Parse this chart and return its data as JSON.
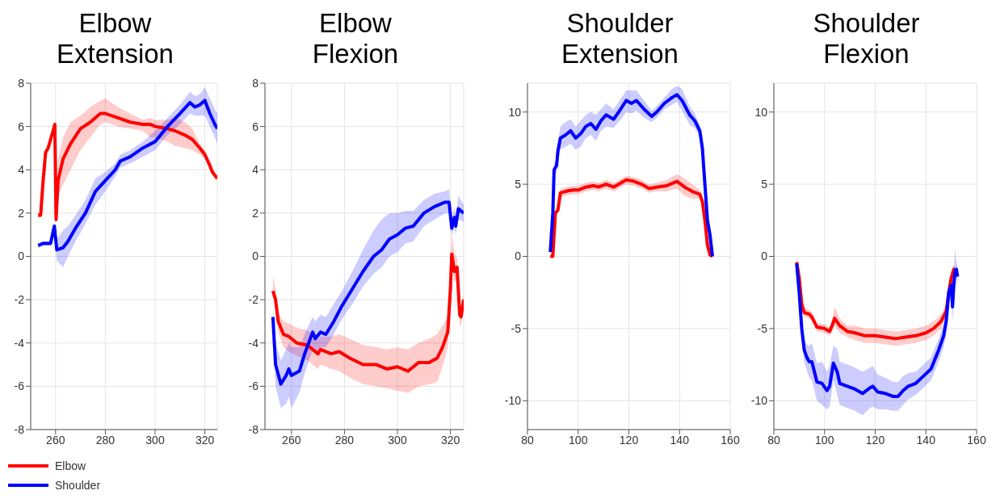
{
  "chart_data": [
    {
      "type": "line",
      "title": "Elbow Extension",
      "xlim": [
        250,
        325
      ],
      "xticks": [
        260,
        280,
        300,
        320
      ],
      "ylim": [
        -8,
        8
      ],
      "yticks": [
        -8,
        -6,
        -4,
        -2,
        0,
        2,
        4,
        6,
        8
      ],
      "grid": true,
      "legend": "bottom left",
      "series": [
        {
          "name": "Elbow",
          "color": "#ff0000",
          "x": [
            253,
            254,
            255,
            256,
            257,
            259,
            259.7,
            260.2,
            261,
            263,
            266,
            270,
            274,
            278,
            280,
            285,
            290,
            295,
            298,
            300,
            305,
            308,
            312,
            315,
            318,
            320,
            322,
            323,
            325
          ],
          "values": [
            1.9,
            1.9,
            3.5,
            4.8,
            5.0,
            5.8,
            6.1,
            1.7,
            3.5,
            4.5,
            5.2,
            5.9,
            6.2,
            6.6,
            6.6,
            6.4,
            6.2,
            6.1,
            6.1,
            6.0,
            5.9,
            5.8,
            5.6,
            5.4,
            5.0,
            4.7,
            4.2,
            3.9,
            3.6
          ],
          "lower": [
            1.8,
            1.8,
            3.4,
            4.7,
            4.9,
            5.7,
            6.0,
            1.6,
            2.8,
            3.3,
            4.0,
            4.9,
            5.5,
            6.1,
            6.2,
            6.0,
            5.9,
            5.8,
            5.5,
            5.5,
            5.3,
            5.1,
            5.0,
            4.9,
            4.7,
            4.5,
            4.0,
            3.8,
            3.5
          ],
          "upper": [
            2.0,
            2.0,
            3.6,
            4.9,
            5.1,
            5.9,
            6.2,
            1.8,
            4.5,
            5.5,
            6.2,
            6.5,
            6.9,
            7.2,
            7.3,
            6.9,
            6.6,
            6.3,
            6.4,
            6.3,
            6.3,
            6.4,
            6.2,
            5.9,
            5.2,
            4.9,
            4.4,
            4.0,
            3.7
          ]
        },
        {
          "name": "Shoulder",
          "color": "#0000ff",
          "x": [
            253,
            255,
            258,
            259.5,
            260.5,
            263,
            265,
            268,
            272,
            276,
            280,
            284,
            286,
            290,
            295,
            300,
            305,
            310,
            314,
            316,
            318,
            320,
            322,
            324,
            325
          ],
          "values": [
            0.5,
            0.6,
            0.6,
            1.4,
            0.3,
            0.4,
            0.7,
            1.3,
            2.0,
            3.0,
            3.5,
            4.0,
            4.4,
            4.6,
            5.0,
            5.3,
            6.0,
            6.6,
            7.1,
            6.9,
            7.0,
            7.2,
            6.6,
            6.1,
            5.9
          ],
          "lower": [
            0.4,
            0.5,
            0.5,
            1.3,
            -0.2,
            -0.5,
            0.0,
            0.7,
            1.5,
            2.4,
            3.0,
            3.7,
            4.1,
            4.3,
            4.6,
            4.9,
            5.6,
            6.1,
            6.6,
            6.5,
            6.5,
            6.5,
            6.0,
            5.5,
            5.2
          ],
          "upper": [
            0.6,
            0.7,
            0.7,
            1.5,
            0.8,
            1.2,
            1.4,
            1.9,
            2.6,
            3.6,
            3.9,
            4.3,
            4.7,
            4.9,
            5.3,
            5.8,
            6.4,
            7.0,
            7.6,
            7.4,
            7.5,
            7.8,
            7.3,
            6.8,
            6.6
          ]
        }
      ]
    },
    {
      "type": "line",
      "title": "Elbow Flexion",
      "xlim": [
        250,
        325
      ],
      "xticks": [
        260,
        280,
        300,
        320
      ],
      "ylim": [
        -8,
        8
      ],
      "yticks": [
        -8,
        -6,
        -4,
        -2,
        0,
        2,
        4,
        6,
        8
      ],
      "grid": true,
      "series": [
        {
          "color": "#ff0000",
          "x": [
            253,
            254,
            255,
            257,
            259,
            262,
            266,
            270,
            271,
            275,
            278,
            282,
            287,
            292,
            296,
            300,
            304,
            308,
            312,
            315,
            317,
            319,
            320,
            320.5,
            321.5,
            322.5,
            323.5,
            324,
            325
          ],
          "values": [
            -1.6,
            -2.0,
            -3.0,
            -3.6,
            -3.7,
            -4.0,
            -4.1,
            -4.5,
            -4.3,
            -4.5,
            -4.4,
            -4.7,
            -5.0,
            -5.0,
            -5.2,
            -5.1,
            -5.3,
            -4.9,
            -4.9,
            -4.7,
            -4.2,
            -3.5,
            -1.5,
            0.1,
            -0.7,
            -0.5,
            -2.7,
            -2.8,
            -2.0
          ],
          "lower": [
            -1.8,
            -2.4,
            -3.5,
            -4.2,
            -4.4,
            -4.6,
            -4.8,
            -5.2,
            -5.0,
            -5.2,
            -5.3,
            -5.6,
            -5.9,
            -6.0,
            -6.1,
            -6.2,
            -6.3,
            -6.0,
            -5.9,
            -5.8,
            -5.1,
            -4.2,
            -2.0,
            -0.2,
            -1.2,
            -1.0,
            -3.2,
            -3.2,
            -2.2
          ],
          "upper": [
            -0.9,
            -1.5,
            -2.6,
            -3.0,
            -3.1,
            -3.3,
            -3.4,
            -3.9,
            -3.7,
            -3.7,
            -3.6,
            -3.8,
            -4.1,
            -4.2,
            -4.3,
            -4.2,
            -4.3,
            -4.0,
            -3.8,
            -3.6,
            -3.2,
            -2.8,
            -0.5,
            1.1,
            0.2,
            -0.1,
            -2.2,
            -2.4,
            -1.8
          ]
        },
        {
          "color": "#0000ff",
          "x": [
            253,
            254,
            256,
            258,
            259,
            260,
            263,
            265,
            268,
            269,
            271,
            273,
            276,
            279,
            283,
            287,
            291,
            294,
            297,
            300,
            303,
            306,
            310,
            314,
            318,
            319.5,
            320.5,
            321.5,
            322,
            323,
            325
          ],
          "values": [
            -2.8,
            -5.0,
            -5.9,
            -5.5,
            -5.2,
            -5.5,
            -5.3,
            -4.5,
            -3.5,
            -3.8,
            -3.5,
            -3.6,
            -3.0,
            -2.3,
            -1.5,
            -0.7,
            0.0,
            0.3,
            0.8,
            1.0,
            1.3,
            1.4,
            2.0,
            2.3,
            2.5,
            2.5,
            1.3,
            1.8,
            1.4,
            2.2,
            2.0
          ],
          "lower": [
            -3.2,
            -6.0,
            -7.0,
            -6.8,
            -6.5,
            -7.0,
            -6.3,
            -5.4,
            -4.3,
            -4.5,
            -4.2,
            -4.2,
            -3.6,
            -2.9,
            -2.2,
            -1.4,
            -0.8,
            -0.5,
            0.0,
            0.2,
            0.6,
            0.7,
            1.4,
            1.7,
            2.0,
            2.0,
            1.0,
            1.3,
            1.0,
            1.7,
            1.6
          ],
          "upper": [
            -2.4,
            -4.0,
            -4.8,
            -4.3,
            -4.0,
            -4.2,
            -4.2,
            -3.6,
            -2.8,
            -3.0,
            -2.7,
            -2.8,
            -2.2,
            -1.6,
            -0.7,
            0.3,
            1.2,
            1.7,
            2.0,
            2.0,
            2.1,
            2.1,
            2.6,
            2.9,
            3.0,
            3.1,
            1.6,
            2.3,
            1.9,
            2.8,
            2.4
          ]
        }
      ]
    },
    {
      "type": "line",
      "title": "Shoulder Extension",
      "xlim": [
        80,
        160
      ],
      "xticks": [
        80,
        100,
        120,
        140,
        160
      ],
      "ylim": [
        -12,
        12
      ],
      "yticks": [
        -10,
        -5,
        0,
        5,
        10
      ],
      "grid": true,
      "series": [
        {
          "color": "#ff0000",
          "x": [
            89,
            90,
            91,
            92,
            93,
            95,
            98,
            100,
            103,
            106,
            108,
            111,
            114,
            117,
            119,
            122,
            125,
            128,
            131,
            135,
            139,
            142,
            145,
            148,
            149,
            150,
            151,
            152,
            153
          ],
          "values": [
            0,
            0,
            3.0,
            3.2,
            4.4,
            4.5,
            4.6,
            4.6,
            4.8,
            4.9,
            4.8,
            5.0,
            4.8,
            5.1,
            5.3,
            5.2,
            5.0,
            4.7,
            4.8,
            4.9,
            5.2,
            4.8,
            4.5,
            4.3,
            3.8,
            2.5,
            0.8,
            0.1,
            0
          ],
          "lower": [
            -0.1,
            -0.1,
            2.8,
            3.0,
            4.1,
            4.2,
            4.3,
            4.3,
            4.5,
            4.6,
            4.5,
            4.7,
            4.5,
            4.8,
            5.0,
            4.9,
            4.7,
            4.4,
            4.5,
            4.5,
            4.7,
            4.2,
            4.0,
            4.0,
            3.5,
            2.2,
            0.6,
            0,
            -0.1
          ],
          "upper": [
            0.1,
            0.1,
            3.2,
            3.4,
            4.7,
            4.8,
            4.9,
            4.9,
            5.1,
            5.2,
            5.1,
            5.3,
            5.1,
            5.4,
            5.6,
            5.5,
            5.3,
            5.0,
            5.1,
            5.3,
            5.7,
            5.4,
            5.0,
            4.6,
            4.1,
            2.8,
            1.0,
            0.2,
            0.1
          ]
        },
        {
          "color": "#0000ff",
          "x": [
            89,
            90,
            90.5,
            91.5,
            92,
            93,
            95,
            97,
            99,
            101,
            103,
            105,
            107,
            109,
            111,
            114,
            116,
            119,
            121,
            123,
            126,
            129,
            131,
            134,
            137,
            139,
            141,
            144,
            146,
            148,
            149,
            150,
            151,
            152,
            153
          ],
          "values": [
            0.3,
            3.0,
            6.0,
            6.3,
            7.3,
            8.2,
            8.4,
            8.7,
            8.2,
            8.5,
            9.0,
            9.2,
            8.8,
            9.4,
            9.8,
            9.5,
            10.0,
            10.8,
            10.6,
            10.8,
            10.2,
            9.7,
            10.0,
            10.6,
            11.0,
            11.2,
            10.8,
            9.8,
            9.4,
            8.7,
            7.5,
            5.0,
            2.5,
            1.5,
            0
          ],
          "lower": [
            0.1,
            2.7,
            5.6,
            5.8,
            6.7,
            7.4,
            7.6,
            7.8,
            7.4,
            7.6,
            8.2,
            8.4,
            8.0,
            8.7,
            9.0,
            8.9,
            9.3,
            10.0,
            9.9,
            10.1,
            9.6,
            9.3,
            9.6,
            10.2,
            10.5,
            10.7,
            10.1,
            9.1,
            8.9,
            8.3,
            7.1,
            4.7,
            2.2,
            1.2,
            -0.1
          ],
          "upper": [
            0.5,
            3.3,
            6.4,
            6.8,
            7.9,
            9.0,
            9.3,
            9.5,
            9.0,
            9.4,
            9.8,
            10.0,
            9.8,
            10.2,
            10.6,
            10.2,
            10.7,
            11.5,
            11.5,
            11.5,
            10.8,
            10.1,
            10.4,
            11.0,
            11.6,
            11.8,
            11.6,
            10.4,
            9.9,
            9.1,
            7.9,
            5.3,
            2.8,
            1.8,
            0.1
          ]
        }
      ]
    },
    {
      "type": "line",
      "title": "Shoulder Flexion",
      "xlim": [
        80,
        160
      ],
      "xticks": [
        80,
        100,
        120,
        140,
        160
      ],
      "ylim": [
        -12,
        12
      ],
      "yticks": [
        -10,
        -5,
        0,
        5,
        10
      ],
      "grid": true,
      "series": [
        {
          "color": "#ff0000",
          "x": [
            89,
            90,
            91,
            92,
            94,
            95,
            97,
            100,
            102,
            103,
            104,
            106,
            109,
            112,
            116,
            120,
            124,
            128,
            132,
            136,
            140,
            143,
            146,
            148,
            149,
            150,
            151,
            152
          ],
          "values": [
            -0.4,
            -1.5,
            -3.3,
            -3.9,
            -4.0,
            -4.2,
            -4.9,
            -5.0,
            -5.2,
            -4.8,
            -4.3,
            -4.8,
            -5.2,
            -5.3,
            -5.5,
            -5.5,
            -5.6,
            -5.7,
            -5.6,
            -5.5,
            -5.3,
            -5.0,
            -4.5,
            -3.8,
            -2.5,
            -1.5,
            -0.9,
            -1.0
          ],
          "lower": [
            -0.7,
            -1.8,
            -3.6,
            -4.2,
            -4.3,
            -4.5,
            -5.2,
            -5.3,
            -5.5,
            -5.2,
            -4.8,
            -5.3,
            -5.6,
            -5.8,
            -6.0,
            -6.0,
            -6.1,
            -6.2,
            -6.1,
            -6.0,
            -5.8,
            -5.5,
            -5.0,
            -4.2,
            -2.9,
            -1.9,
            -1.2,
            -1.2
          ],
          "upper": [
            -0.1,
            -1.2,
            -3.0,
            -3.6,
            -3.7,
            -3.9,
            -4.6,
            -4.7,
            -4.9,
            -4.3,
            -3.5,
            -4.3,
            -4.8,
            -4.8,
            -5.0,
            -5.0,
            -5.1,
            -5.2,
            -5.1,
            -5.0,
            -4.8,
            -4.5,
            -4.0,
            -3.4,
            -2.1,
            -1.1,
            -0.6,
            -0.8
          ]
        },
        {
          "color": "#0000ff",
          "x": [
            89,
            90,
            91,
            92,
            93,
            94,
            95,
            97,
            99,
            101,
            102,
            103.5,
            105,
            106,
            109,
            112,
            115,
            118,
            119,
            121,
            124,
            127,
            129,
            131,
            133,
            136,
            139,
            142,
            145,
            147,
            148,
            149,
            150,
            150.5,
            151,
            151.5,
            152,
            152.5
          ],
          "values": [
            -0.5,
            -2.5,
            -5.0,
            -6.5,
            -7.0,
            -7.3,
            -7.3,
            -8.7,
            -8.8,
            -9.3,
            -9.0,
            -7.4,
            -8.0,
            -8.8,
            -9.0,
            -9.2,
            -9.5,
            -9.1,
            -9.0,
            -9.4,
            -9.5,
            -9.7,
            -9.7,
            -9.3,
            -9.0,
            -8.8,
            -8.3,
            -7.8,
            -6.5,
            -5.5,
            -4.5,
            -2.5,
            -2.0,
            -3.5,
            -2.0,
            -1.0,
            -0.9,
            -1.4
          ],
          "lower": [
            -0.7,
            -2.9,
            -5.6,
            -7.3,
            -7.9,
            -8.4,
            -8.6,
            -10.0,
            -10.3,
            -10.6,
            -10.4,
            -8.6,
            -9.6,
            -10.3,
            -10.5,
            -10.7,
            -11.0,
            -10.5,
            -10.4,
            -10.6,
            -10.6,
            -10.7,
            -10.7,
            -10.3,
            -9.9,
            -9.6,
            -9.1,
            -8.6,
            -7.3,
            -6.3,
            -5.4,
            -3.2,
            -2.8,
            -4.5,
            -3.0,
            -1.8,
            -1.5,
            -2.0
          ],
          "upper": [
            -0.3,
            -2.1,
            -4.4,
            -5.7,
            -6.1,
            -6.2,
            -6.0,
            -7.4,
            -7.3,
            -8.0,
            -7.6,
            -6.2,
            -6.4,
            -7.3,
            -7.5,
            -7.7,
            -8.0,
            -7.7,
            -7.6,
            -8.2,
            -8.4,
            -8.7,
            -8.7,
            -8.3,
            -8.1,
            -8.0,
            -7.5,
            -7.0,
            -5.7,
            -4.7,
            -3.6,
            -1.8,
            -1.2,
            -2.5,
            -1.0,
            0.5,
            -0.3,
            -0.8
          ]
        }
      ]
    }
  ]
}
